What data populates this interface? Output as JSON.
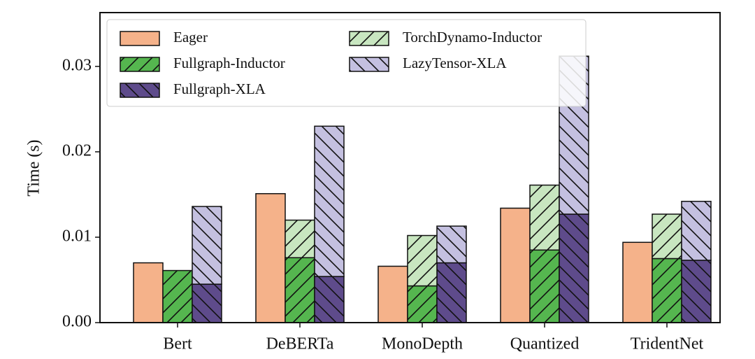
{
  "chart_data": {
    "type": "bar",
    "ylabel": "Time (s)",
    "categories": [
      "Bert",
      "DeBERTa",
      "MonoDepth",
      "Quantized",
      "TridentNet"
    ],
    "series": [
      {
        "name": "Eager",
        "color": "#f5b28a",
        "values": [
          0.007,
          0.0151,
          0.0066,
          0.0134,
          0.0094
        ]
      },
      {
        "name": "Fullgraph-Inductor",
        "color": "#55b64f",
        "hatch": "/",
        "values": [
          0.0061,
          0.0076,
          0.0043,
          0.0085,
          0.0075
        ]
      },
      {
        "name": "Fullgraph-XLA",
        "color": "#5e4b8b",
        "hatch": "\\",
        "values": [
          0.0045,
          0.0054,
          0.007,
          0.0127,
          0.0073
        ]
      },
      {
        "name": "TorchDynamo-Inductor",
        "color": "#c8e6c0",
        "hatch": "/",
        "stack_on": 1,
        "values": [
          0,
          0.0044,
          0.0059,
          0.0076,
          0.0052
        ]
      },
      {
        "name": "LazyTensor-XLA",
        "color": "#c4c0e0",
        "hatch": "\\",
        "stack_on": 2,
        "values": [
          0.0091,
          0.0176,
          0.0043,
          0.0185,
          0.0069
        ]
      }
    ],
    "ylim": [
      0,
      0.0363
    ],
    "yticks": [
      {
        "value": 0,
        "label": "0.00"
      },
      0.01,
      0.02,
      0.03
    ],
    "grid": false,
    "legend": "upper left"
  }
}
